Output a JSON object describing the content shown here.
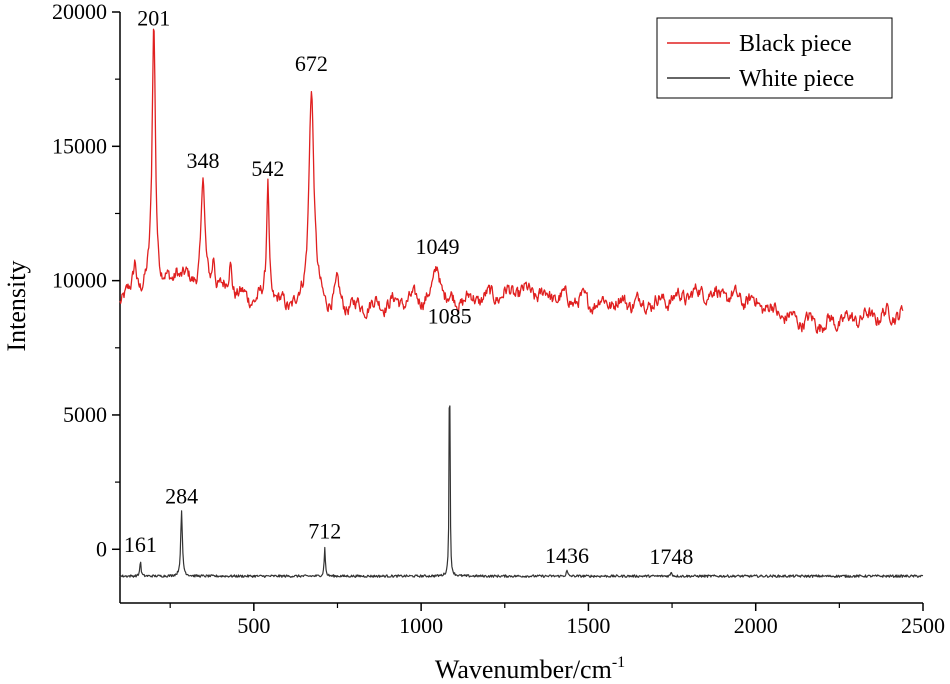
{
  "chart_data": {
    "type": "line",
    "xlabel": "Wavenumber/cm",
    "xlabel_superscript": "-1",
    "ylabel": "Intensity",
    "xlim": [
      100,
      2500
    ],
    "ylim": [
      -2000,
      20000
    ],
    "xticks": [
      500,
      1000,
      1500,
      2000,
      2500
    ],
    "xtick_labels": [
      "500",
      "1000",
      "1500",
      "2000",
      "2500"
    ],
    "yticks": [
      0,
      5000,
      10000,
      15000,
      20000
    ],
    "ytick_labels": [
      "0",
      "5000",
      "10000",
      "15000",
      "20000"
    ],
    "grid": false,
    "legend": {
      "placement": "top-right",
      "entries": [
        "Black piece",
        "White piece"
      ]
    },
    "series": [
      {
        "name": "Black piece",
        "color": "#e02020",
        "x_end": 2440,
        "baseline": [
          [
            100,
            9300
          ],
          [
            300,
            10000
          ],
          [
            450,
            9400
          ],
          [
            600,
            9000
          ],
          [
            800,
            9000
          ],
          [
            1000,
            9300
          ],
          [
            1100,
            9200
          ],
          [
            1300,
            9600
          ],
          [
            1500,
            9200
          ],
          [
            1700,
            9200
          ],
          [
            1850,
            9600
          ],
          [
            2000,
            9200
          ],
          [
            2100,
            8600
          ],
          [
            2200,
            8400
          ],
          [
            2300,
            8600
          ],
          [
            2440,
            8800
          ]
        ],
        "peaks": [
          {
            "x": 145,
            "height": 1200,
            "width": 12
          },
          {
            "x": 201,
            "height": 10000,
            "width": 12
          },
          {
            "x": 270,
            "height": 500,
            "width": 15
          },
          {
            "x": 348,
            "height": 4000,
            "width": 12
          },
          {
            "x": 380,
            "height": 1200,
            "width": 10
          },
          {
            "x": 430,
            "height": 1200,
            "width": 12
          },
          {
            "x": 542,
            "height": 4600,
            "width": 9
          },
          {
            "x": 672,
            "height": 8200,
            "width": 18
          },
          {
            "x": 750,
            "height": 700,
            "width": 15
          },
          {
            "x": 1049,
            "height": 1300,
            "width": 22
          }
        ],
        "peak_labels": [
          {
            "x": 201,
            "y": 19200,
            "text": "201"
          },
          {
            "x": 348,
            "y": 13900,
            "text": "348"
          },
          {
            "x": 542,
            "y": 13600,
            "text": "542"
          },
          {
            "x": 672,
            "y": 17500,
            "text": "672"
          },
          {
            "x": 1049,
            "y": 10700,
            "text": "1049"
          }
        ]
      },
      {
        "name": "White piece",
        "color": "#333333",
        "x_end": 2500,
        "baseline": [
          [
            100,
            -1000
          ],
          [
            2500,
            -1000
          ]
        ],
        "peaks": [
          {
            "x": 161,
            "height": 600,
            "width": 4
          },
          {
            "x": 284,
            "height": 2400,
            "width": 6
          },
          {
            "x": 712,
            "height": 1100,
            "width": 4
          },
          {
            "x": 1085,
            "height": 9100,
            "width": 3
          },
          {
            "x": 1436,
            "height": 200,
            "width": 5
          },
          {
            "x": 1748,
            "height": 150,
            "width": 5
          }
        ],
        "peak_labels": [
          {
            "x": 161,
            "y": -400,
            "text": "161"
          },
          {
            "x": 284,
            "y": 1400,
            "text": "284"
          },
          {
            "x": 712,
            "y": 100,
            "text": "712"
          },
          {
            "x": 1085,
            "y": 8100,
            "text": "1085"
          },
          {
            "x": 1436,
            "y": -800,
            "text": "1436"
          },
          {
            "x": 1748,
            "y": -850,
            "text": "1748"
          }
        ]
      }
    ]
  }
}
